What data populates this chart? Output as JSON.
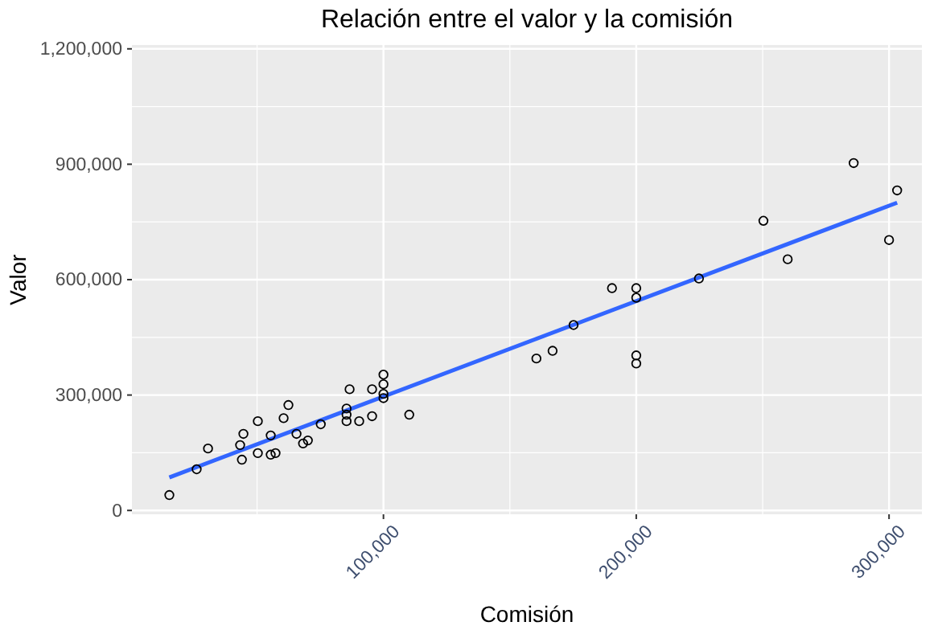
{
  "chart_data": {
    "type": "scatter",
    "title": "Relación entre el valor y la comisión",
    "xlabel": "Comisión",
    "ylabel": "Valor",
    "xlim": [
      500,
      313000
    ],
    "ylim": [
      -10000,
      1210000
    ],
    "xticks": [
      {
        "value": 100000,
        "label": "100,000"
      },
      {
        "value": 200000,
        "label": "200,000"
      },
      {
        "value": 300000,
        "label": "300,000"
      }
    ],
    "yticks": [
      {
        "value": 0,
        "label": "0"
      },
      {
        "value": 300000,
        "label": "300,000"
      },
      {
        "value": 600000,
        "label": "600,000"
      },
      {
        "value": 900000,
        "label": "900,000"
      },
      {
        "value": 1200000,
        "label": "1,200,000"
      }
    ],
    "grid": true,
    "marker": "circle",
    "series": [
      {
        "color": "#000000",
        "x": [
          15300,
          26100,
          30600,
          43300,
          44600,
          44000,
          50300,
          50300,
          55400,
          55400,
          57300,
          60500,
          62400,
          65600,
          68200,
          70100,
          75200,
          85400,
          85400,
          85400,
          86600,
          90400,
          95500,
          95500,
          100000,
          100000,
          100000,
          100000,
          110200,
          160500,
          166900,
          175200,
          190400,
          200000,
          200000,
          200000,
          200000,
          224800,
          250300,
          259900,
          286000,
          300000,
          303200
        ],
        "values": [
          40000,
          107000,
          161000,
          170000,
          199000,
          132000,
          232000,
          149000,
          195000,
          145000,
          149000,
          240000,
          274000,
          199000,
          174000,
          182000,
          224000,
          265000,
          249000,
          232000,
          315000,
          232000,
          315000,
          245000,
          353000,
          328000,
          303000,
          292000,
          249000,
          395000,
          415000,
          482000,
          578000,
          578000,
          553000,
          403000,
          382000,
          603000,
          753000,
          653000,
          903000,
          703000,
          832000
        ]
      },
      {
        "type": "line",
        "color": "#3366ff",
        "marker": "none",
        "x": [
          15300,
          303200
        ],
        "values": [
          86000,
          800000
        ]
      }
    ]
  }
}
